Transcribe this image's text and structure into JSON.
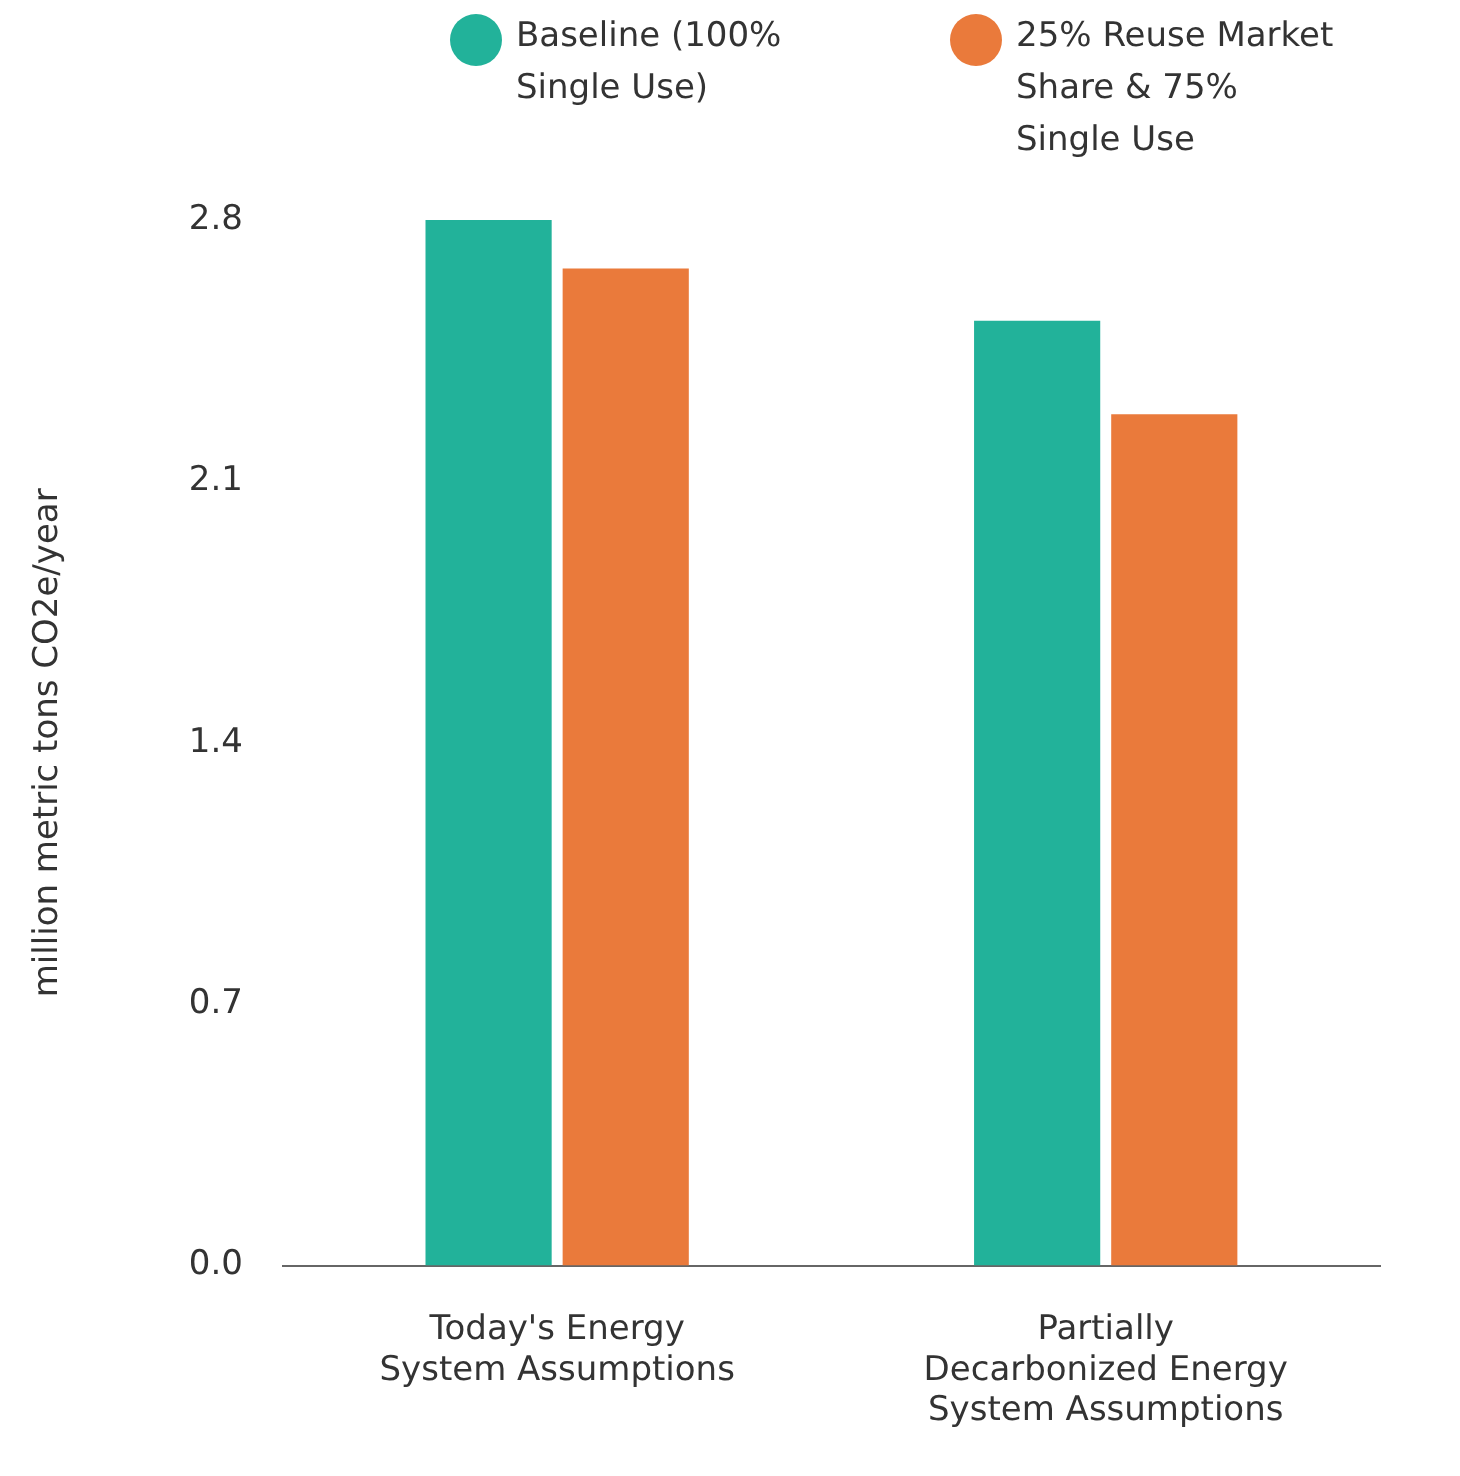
{
  "chart_data": {
    "type": "bar",
    "ylabel": "million metric tons CO2e/year",
    "categories": [
      "Today's Energy System Assumptions",
      "Partially Decarbonized Energy System Assumptions"
    ],
    "series": [
      {
        "name": "Baseline (100% Single Use)",
        "color": "#22b29a",
        "values": [
          2.8,
          2.53
        ]
      },
      {
        "name": "25% Reuse Market Share & 75% Single Use",
        "color": "#ea7a3b",
        "values": [
          2.67,
          2.28
        ]
      }
    ],
    "ylim": [
      0,
      2.8
    ],
    "yticks": [
      {
        "value": 0,
        "label": "0.0"
      },
      {
        "value": 0.7,
        "label": "0.7"
      },
      {
        "value": 1.4,
        "label": "1.4"
      },
      {
        "value": 2.1,
        "label": "2.1"
      },
      {
        "value": 2.8,
        "label": "2.8"
      }
    ],
    "grid": false,
    "legend": "top"
  }
}
